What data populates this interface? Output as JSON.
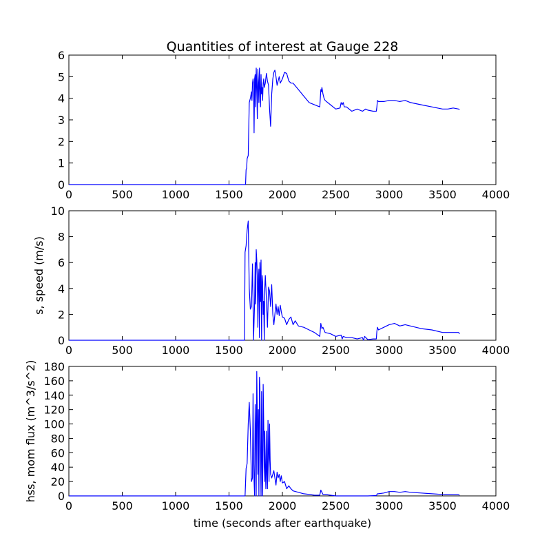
{
  "chart_data": [
    {
      "type": "line",
      "title": "Quantities of interest at Gauge 228",
      "xlabel": "",
      "ylabel": "",
      "xlim": [
        0,
        4000
      ],
      "ylim": [
        0,
        6
      ],
      "xticks": [
        "0",
        "500",
        "1000",
        "1500",
        "2000",
        "2500",
        "3000",
        "3500",
        "4000"
      ],
      "yticks": [
        "0",
        "1",
        "2",
        "3",
        "4",
        "5",
        "6"
      ],
      "grid": false,
      "color": "#0000ff",
      "series": [
        {
          "x": [
            0,
            1650,
            1655,
            1660,
            1665,
            1670,
            1680,
            1690,
            1700,
            1710,
            1715,
            1720,
            1725,
            1730,
            1735,
            1740,
            1745,
            1750,
            1755,
            1760,
            1765,
            1770,
            1775,
            1780,
            1785,
            1790,
            1795,
            1800,
            1805,
            1810,
            1815,
            1820,
            1825,
            1830,
            1840,
            1850,
            1860,
            1870,
            1880,
            1890,
            1900,
            1910,
            1920,
            1930,
            1940,
            1950,
            1960,
            1970,
            1980,
            2000,
            2020,
            2040,
            2060,
            2080,
            2100,
            2150,
            2200,
            2250,
            2300,
            2350,
            2360,
            2365,
            2370,
            2380,
            2390,
            2400,
            2450,
            2500,
            2540,
            2550,
            2560,
            2570,
            2580,
            2600,
            2650,
            2700,
            2750,
            2780,
            2800,
            2850,
            2880,
            2885,
            2890,
            2900,
            2950,
            3000,
            3050,
            3100,
            3150,
            3200,
            3300,
            3400,
            3500,
            3550,
            3600,
            3650,
            3660
          ],
          "y": [
            0,
            0,
            0,
            0.7,
            0.75,
            1.2,
            1.35,
            3.8,
            4.0,
            4.3,
            3.9,
            4.7,
            4.9,
            4.7,
            2.4,
            4.9,
            5.1,
            3.6,
            5.4,
            4.6,
            3.05,
            5.35,
            4.8,
            3.8,
            5.4,
            4.5,
            3.6,
            5.1,
            4.2,
            4.5,
            3.9,
            4.7,
            4.9,
            4.5,
            4.7,
            5.15,
            4.8,
            4.6,
            3.5,
            2.7,
            4.2,
            4.9,
            5.2,
            5.3,
            5.0,
            4.6,
            4.8,
            5.0,
            4.7,
            4.9,
            5.2,
            5.15,
            4.8,
            4.7,
            4.7,
            4.4,
            4.1,
            3.8,
            3.7,
            3.6,
            4.4,
            4.3,
            4.5,
            4.2,
            4.0,
            3.9,
            3.7,
            3.5,
            3.55,
            3.8,
            3.7,
            3.8,
            3.6,
            3.6,
            3.4,
            3.5,
            3.4,
            3.5,
            3.45,
            3.4,
            3.4,
            3.6,
            3.9,
            3.85,
            3.85,
            3.9,
            3.9,
            3.85,
            3.9,
            3.8,
            3.7,
            3.6,
            3.5,
            3.5,
            3.55,
            3.5,
            3.48
          ]
        }
      ]
    },
    {
      "type": "line",
      "title": "",
      "xlabel": "",
      "ylabel": "s, speed (m/s)",
      "xlim": [
        0,
        4000
      ],
      "ylim": [
        0,
        10
      ],
      "xticks": [
        "0",
        "500",
        "1000",
        "1500",
        "2000",
        "2500",
        "3000",
        "3500",
        "4000"
      ],
      "yticks": [
        "0",
        "2",
        "4",
        "6",
        "8",
        "10"
      ],
      "grid": false,
      "color": "#0000ff",
      "series": [
        {
          "x": [
            0,
            1640,
            1645,
            1650,
            1660,
            1670,
            1680,
            1690,
            1700,
            1710,
            1720,
            1730,
            1740,
            1745,
            1750,
            1755,
            1760,
            1765,
            1770,
            1775,
            1780,
            1785,
            1790,
            1795,
            1800,
            1805,
            1810,
            1815,
            1820,
            1825,
            1830,
            1835,
            1840,
            1850,
            1860,
            1870,
            1880,
            1890,
            1900,
            1910,
            1920,
            1930,
            1940,
            1950,
            1960,
            1970,
            1980,
            1990,
            2000,
            2020,
            2040,
            2060,
            2080,
            2100,
            2120,
            2150,
            2200,
            2250,
            2300,
            2350,
            2360,
            2370,
            2380,
            2400,
            2450,
            2500,
            2550,
            2560,
            2570,
            2600,
            2650,
            2700,
            2750,
            2760,
            2770,
            2800,
            2850,
            2880,
            2885,
            2890,
            2900,
            2950,
            3000,
            3050,
            3100,
            3150,
            3200,
            3300,
            3400,
            3500,
            3600,
            3650,
            3660
          ],
          "y": [
            0,
            0,
            0,
            6.8,
            7.3,
            8.5,
            9.2,
            4.0,
            2.4,
            2.6,
            5.9,
            0.0,
            3.0,
            6.0,
            2.8,
            7.0,
            6.2,
            5.0,
            1.0,
            4.5,
            5.5,
            0.2,
            6.0,
            3.0,
            6.2,
            0.0,
            5.0,
            4.5,
            2.0,
            3.0,
            0.0,
            4.0,
            5.0,
            3.2,
            1.0,
            4.1,
            3.8,
            2.6,
            4.3,
            2.0,
            1.2,
            2.0,
            2.8,
            2.0,
            2.6,
            1.9,
            2.7,
            2.2,
            1.8,
            1.7,
            1.2,
            1.6,
            1.8,
            1.2,
            1.5,
            1.1,
            1.0,
            0.8,
            0.6,
            0.3,
            1.3,
            0.9,
            1.0,
            0.6,
            0.5,
            0.3,
            0.4,
            0.1,
            0.3,
            0.2,
            0.2,
            0.1,
            0.2,
            0.0,
            0.3,
            0.05,
            0.1,
            0.1,
            0.7,
            1.0,
            0.8,
            1.0,
            1.2,
            1.3,
            1.1,
            1.2,
            1.1,
            0.9,
            0.8,
            0.6,
            0.6,
            0.6,
            0.5
          ]
        }
      ]
    },
    {
      "type": "line",
      "title": "",
      "xlabel": "time (seconds after earthquake)",
      "ylabel": "hss, mom flux (m^3/s^2)",
      "xlim": [
        0,
        4000
      ],
      "ylim": [
        0,
        180
      ],
      "xticks": [
        "0",
        "500",
        "1000",
        "1500",
        "2000",
        "2500",
        "3000",
        "3500",
        "4000"
      ],
      "yticks": [
        "0",
        "20",
        "40",
        "60",
        "80",
        "100",
        "120",
        "140",
        "160",
        "180"
      ],
      "grid": false,
      "color": "#0000ff",
      "series": [
        {
          "x": [
            0,
            1650,
            1660,
            1670,
            1680,
            1690,
            1700,
            1710,
            1720,
            1725,
            1730,
            1735,
            1740,
            1745,
            1750,
            1755,
            1760,
            1765,
            1770,
            1775,
            1780,
            1785,
            1790,
            1795,
            1800,
            1805,
            1810,
            1815,
            1820,
            1825,
            1830,
            1835,
            1840,
            1845,
            1850,
            1855,
            1860,
            1865,
            1870,
            1875,
            1880,
            1885,
            1890,
            1900,
            1910,
            1920,
            1930,
            1940,
            1950,
            1960,
            1970,
            1980,
            1990,
            2000,
            2020,
            2040,
            2060,
            2080,
            2100,
            2150,
            2200,
            2250,
            2300,
            2350,
            2360,
            2370,
            2380,
            2400,
            2450,
            2500,
            2600,
            2700,
            2800,
            2880,
            2890,
            2900,
            2950,
            3000,
            3050,
            3100,
            3150,
            3200,
            3300,
            3400,
            3500,
            3600,
            3650,
            3660
          ],
          "y": [
            0,
            0,
            38,
            45,
            100,
            130,
            90,
            20,
            25,
            142,
            60,
            20,
            0,
            127,
            95,
            0,
            173,
            110,
            30,
            120,
            0,
            165,
            150,
            60,
            0,
            145,
            30,
            0,
            155,
            100,
            20,
            90,
            40,
            10,
            90,
            30,
            10,
            105,
            60,
            20,
            100,
            50,
            30,
            25,
            30,
            35,
            25,
            15,
            33,
            25,
            30,
            20,
            28,
            18,
            20,
            10,
            14,
            10,
            7,
            5,
            3,
            2,
            1,
            1,
            8,
            5,
            2,
            2,
            1,
            0,
            0,
            0,
            0,
            0.5,
            3,
            3,
            4,
            6,
            6,
            5,
            6,
            5,
            4,
            3,
            2,
            1.5,
            1.5,
            1
          ]
        }
      ]
    }
  ]
}
